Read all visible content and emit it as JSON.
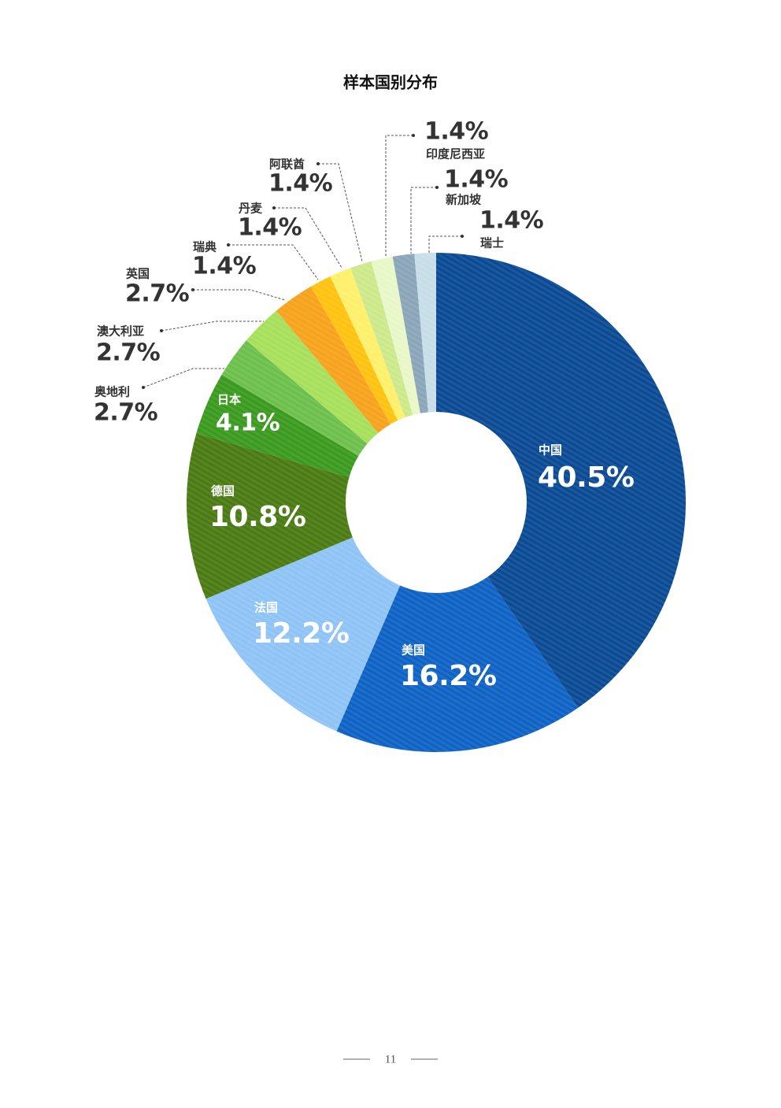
{
  "chart_data": {
    "type": "pie",
    "title": "样本国别分布",
    "categories": [
      "中国",
      "美国",
      "法国",
      "德国",
      "日本",
      "奥地利",
      "澳大利亚",
      "英国",
      "瑞典",
      "丹麦",
      "阿联酋",
      "印度尼西亚",
      "新加坡",
      "瑞士"
    ],
    "values": [
      40.5,
      16.2,
      12.2,
      10.8,
      4.1,
      2.7,
      2.7,
      2.7,
      1.4,
      1.4,
      1.4,
      1.4,
      1.4,
      1.4
    ],
    "value_labels": [
      "40.5%",
      "16.2%",
      "12.2%",
      "10.8%",
      "4.1%",
      "2.7%",
      "2.7%",
      "2.7%",
      "1.4%",
      "1.4%",
      "1.4%",
      "1.4%",
      "1.4%",
      "1.4%"
    ],
    "colors": [
      "#0a4a94",
      "#0d62c4",
      "#8ec3f5",
      "#4a7a12",
      "#3a9a1e",
      "#6cbf4a",
      "#a6e05a",
      "#f7a21b",
      "#ffc20e",
      "#fff06a",
      "#cce98a",
      "#e8f7c8",
      "#8aa5b8",
      "#c7dde8"
    ]
  },
  "page_number": "11"
}
